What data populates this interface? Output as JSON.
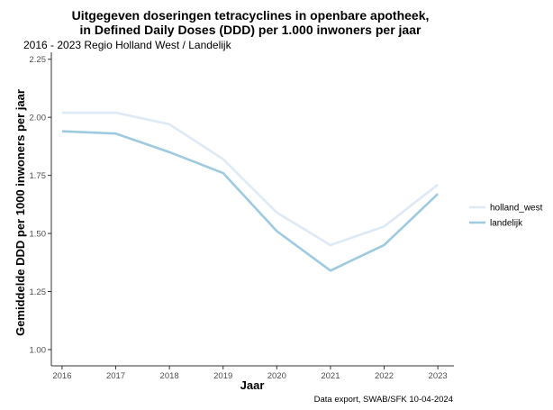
{
  "chart_data": {
    "type": "line",
    "title_lines": [
      "Uitgegeven doseringen tetracyclines in openbare apotheek,",
      "in Defined Daily Doses (DDD) per 1.000 inwoners per jaar"
    ],
    "subtitle": "2016 - 2023  Regio Holland West / Landelijk",
    "xlabel": "Jaar",
    "ylabel": "Gemiddelde DDD per 1000 inwoners per jaar",
    "caption": "Data export, SWAB/SFK 10-04-2024",
    "x": [
      2016,
      2017,
      2018,
      2019,
      2020,
      2021,
      2022,
      2023
    ],
    "x_tick_labels": [
      "2016",
      "2017",
      "2018",
      "2019",
      "2020",
      "2021",
      "2022",
      "2023"
    ],
    "y_ticks": [
      1.0,
      1.25,
      1.5,
      1.75,
      2.0,
      2.25
    ],
    "y_tick_labels": [
      "1.00",
      "1.25",
      "1.50",
      "1.75",
      "2.00",
      "2.25"
    ],
    "xlim": [
      2015.8,
      2023.3
    ],
    "ylim": [
      0.93,
      2.28
    ],
    "grid": false,
    "legend_position": "right",
    "series": [
      {
        "name": "holland_west",
        "color": "#dde9f4",
        "values": [
          2.02,
          2.02,
          1.97,
          1.82,
          1.59,
          1.45,
          1.53,
          1.71
        ]
      },
      {
        "name": "landelijk",
        "color": "#9ecae1",
        "values": [
          1.94,
          1.93,
          1.85,
          1.76,
          1.51,
          1.34,
          1.45,
          1.67
        ]
      }
    ]
  }
}
